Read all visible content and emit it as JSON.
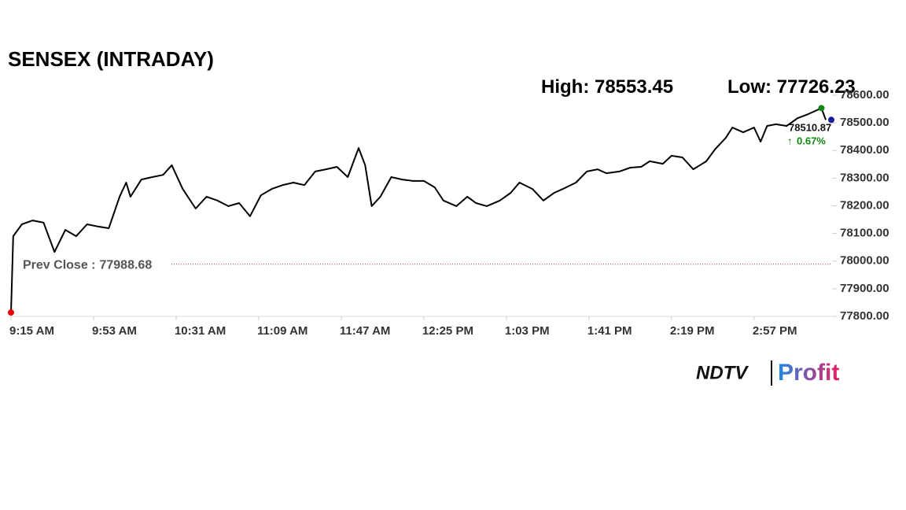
{
  "chart_data": {
    "type": "line",
    "title": "SENSEX (INTRADAY)",
    "high": {
      "label": "High:",
      "value": 78553.45
    },
    "low": {
      "label": "Low:",
      "value": 77726.23
    },
    "prev_close": {
      "label": "Prev Close :",
      "value": 77988.68
    },
    "last": 78510.87,
    "change": {
      "value": 0.67,
      "label": "0.67%"
    },
    "color": "#000000",
    "x": [
      555,
      556,
      560,
      565,
      570,
      575,
      580,
      585,
      590,
      595,
      600,
      605,
      608,
      610,
      615,
      620,
      625,
      629,
      634,
      640,
      645,
      650,
      655,
      660,
      665,
      670,
      675,
      680,
      685,
      690,
      695,
      700,
      705,
      710,
      715,
      718,
      721,
      725,
      730,
      735,
      740,
      745,
      750,
      754,
      760,
      765,
      769,
      774,
      780,
      785,
      789,
      795,
      800,
      805,
      809,
      815,
      820,
      825,
      829,
      835,
      840,
      845,
      849,
      855,
      859,
      864,
      869,
      875,
      879,
      884,
      887,
      892,
      897,
      900,
      903,
      907,
      912,
      917,
      922,
      928,
      930
    ],
    "values": [
      77814,
      78090,
      78133,
      78147,
      78139,
      78033,
      78113,
      78090,
      78133,
      78125,
      78119,
      78233,
      78284,
      78233,
      78295,
      78304,
      78312,
      78347,
      78261,
      78190,
      78233,
      78219,
      78199,
      78210,
      78162,
      78238,
      78261,
      78275,
      78284,
      78275,
      78324,
      78332,
      78341,
      78304,
      78409,
      78347,
      78199,
      78233,
      78304,
      78295,
      78290,
      78290,
      78267,
      78219,
      78199,
      78233,
      78210,
      78199,
      78219,
      78247,
      78284,
      78261,
      78219,
      78247,
      78261,
      78284,
      78324,
      78332,
      78318,
      78324,
      78338,
      78341,
      78361,
      78352,
      78381,
      78375,
      78332,
      78361,
      78404,
      78446,
      78483,
      78466,
      78483,
      78432,
      78489,
      78495,
      78489,
      78517,
      78532,
      78553.45,
      78510.87
    ],
    "xlim": [
      555,
      930
    ],
    "xticks": [
      {
        "value": 555,
        "label": "9:15 AM"
      },
      {
        "value": 593,
        "label": "9:53 AM"
      },
      {
        "value": 631,
        "label": "10:31 AM"
      },
      {
        "value": 669,
        "label": "11:09 AM"
      },
      {
        "value": 707,
        "label": "11:47 AM"
      },
      {
        "value": 745,
        "label": "12:25 PM"
      },
      {
        "value": 783,
        "label": "1:03 PM"
      },
      {
        "value": 821,
        "label": "1:41 PM"
      },
      {
        "value": 859,
        "label": "2:19 PM"
      },
      {
        "value": 897,
        "label": "2:57 PM"
      }
    ],
    "ylim": [
      77800,
      78600
    ],
    "yticks": [
      {
        "value": 77800,
        "label": "77800.00"
      },
      {
        "value": 77900,
        "label": "77900.00"
      },
      {
        "value": 78000,
        "label": "78000.00"
      },
      {
        "value": 78100,
        "label": "78100.00"
      },
      {
        "value": 78200,
        "label": "78200.00"
      },
      {
        "value": 78300,
        "label": "78300.00"
      },
      {
        "value": 78400,
        "label": "78400.00"
      },
      {
        "value": 78500,
        "label": "78500.00"
      },
      {
        "value": 78600,
        "label": "78600.00"
      }
    ],
    "brand": {
      "left": "NDTV",
      "right": "Profit"
    }
  }
}
